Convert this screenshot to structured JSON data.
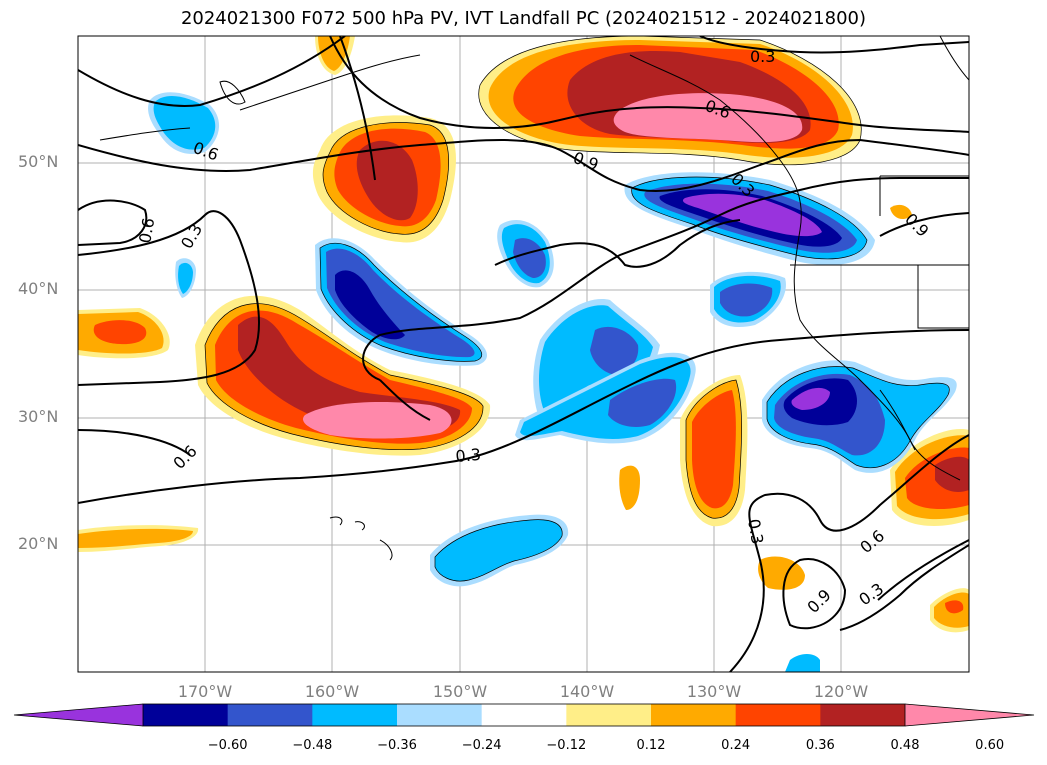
{
  "title": "2024021300 F072 500 hPa PV, IVT Landfall PC (2024021512 - 2024021800)",
  "lat_ticks": [
    "50°N",
    "40°N",
    "30°N",
    "20°N"
  ],
  "lon_ticks": [
    "170°W",
    "160°W",
    "150°W",
    "140°W",
    "130°W",
    "120°W"
  ],
  "colorbar": {
    "levels": [
      "−0.60",
      "−0.48",
      "−0.36",
      "−0.24",
      "−0.12",
      "0.12",
      "0.24",
      "0.36",
      "0.48",
      "0.60"
    ],
    "colors": [
      "#9933dd",
      "#000099",
      "#3355cc",
      "#00bbff",
      "#aaddff",
      "#ffffff",
      "#ffee88",
      "#ffaa00",
      "#ff4400",
      "#b22222",
      "#ff88aa"
    ],
    "extend": "both"
  },
  "contour_labels": [
    "0.3",
    "0.6",
    "0.9",
    "0.6",
    "0.3",
    "0.6",
    "0.3",
    "0.6",
    "0.3",
    "0.9",
    "0.6",
    "0.3",
    "0.9",
    "0.3"
  ],
  "colors": {
    "background": "#ffffff",
    "grid": "#b0b0b0",
    "tick_label": "#808080",
    "contour": "#000000"
  }
}
